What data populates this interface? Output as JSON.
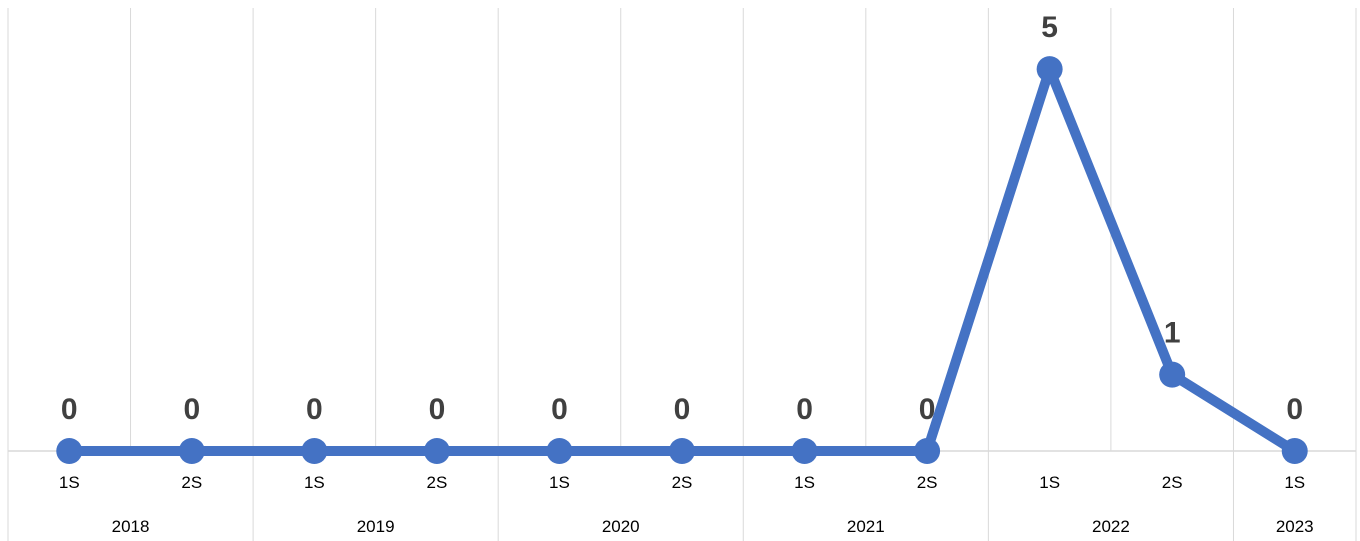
{
  "chart_data": {
    "type": "line",
    "title": "",
    "xlabel": "",
    "ylabel": "",
    "ylim": [
      0,
      5.8
    ],
    "grid": "vertical",
    "legend": "none",
    "line_color": "#4472c4",
    "categories": [
      "1S",
      "2S",
      "1S",
      "2S",
      "1S",
      "2S",
      "1S",
      "2S",
      "1S",
      "2S",
      "1S"
    ],
    "groups": [
      {
        "label": "2018",
        "span": 2
      },
      {
        "label": "2019",
        "span": 2
      },
      {
        "label": "2020",
        "span": 2
      },
      {
        "label": "2021",
        "span": 2
      },
      {
        "label": "2022",
        "span": 2
      },
      {
        "label": "2023",
        "span": 1
      }
    ],
    "series": [
      {
        "values": [
          0,
          0,
          0,
          0,
          0,
          0,
          0,
          0,
          5,
          1,
          0
        ],
        "data_labels": [
          "0",
          "0",
          "0",
          "0",
          "0",
          "0",
          "0",
          "0",
          "5",
          "1",
          "0"
        ]
      }
    ]
  }
}
